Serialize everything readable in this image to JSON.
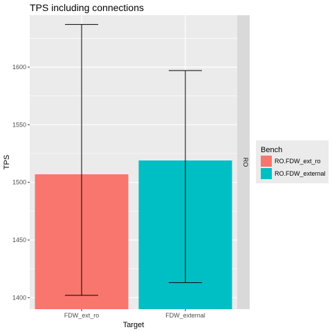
{
  "chart_data": {
    "type": "bar",
    "title": "TPS including connections",
    "xlabel": "Target",
    "ylabel": "TPS",
    "facet_label": "RO",
    "categories": [
      "FDW_ext_ro",
      "FDW_external"
    ],
    "series": [
      {
        "name": "RO.FDW_ext_ro",
        "color": "#f8766d",
        "value": 1507,
        "error_low": 1402,
        "error_high": 1637
      },
      {
        "name": "RO.FDW_external",
        "color": "#00bfc4",
        "value": 1519,
        "error_low": 1413,
        "error_high": 1597
      }
    ],
    "y_ticks": [
      1400,
      1450,
      1500,
      1550,
      1600
    ],
    "ylim": [
      1390,
      1645
    ],
    "baseline": 0,
    "grid": true,
    "legend": {
      "title": "Bench",
      "position": "right"
    },
    "colors": {
      "panel": "#ebebeb",
      "strip": "#d9d9d9",
      "grid": "#ffffff"
    }
  }
}
